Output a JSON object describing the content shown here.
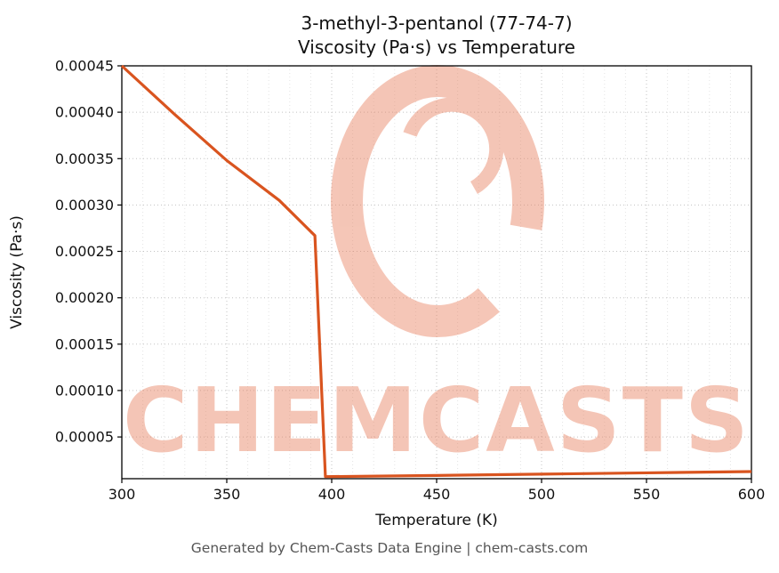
{
  "figure": {
    "background": "#ffffff"
  },
  "chart_data": {
    "type": "line",
    "title_line1": "3-methyl-3-pentanol (77-74-7)",
    "title_line2": "Viscosity (Pa·s) vs Temperature",
    "xlabel": "Temperature (K)",
    "ylabel": "Viscosity (Pa·s)",
    "xlim": [
      300,
      600
    ],
    "ylim": [
      5e-06,
      0.00045
    ],
    "xticks": [
      300,
      350,
      400,
      450,
      500,
      550,
      600
    ],
    "yticks": [
      {
        "value": 5e-05,
        "label": "0.00005"
      },
      {
        "value": 0.0001,
        "label": "0.00010"
      },
      {
        "value": 0.00015,
        "label": "0.00015"
      },
      {
        "value": 0.0002,
        "label": "0.00020"
      },
      {
        "value": 0.00025,
        "label": "0.00025"
      },
      {
        "value": 0.0003,
        "label": "0.00030"
      },
      {
        "value": 0.00035,
        "label": "0.00035"
      },
      {
        "value": 0.0004,
        "label": "0.00040"
      },
      {
        "value": 0.00045,
        "label": "0.00045"
      }
    ],
    "minor_x_step": 10,
    "grid": true,
    "legend": "none",
    "series": [
      {
        "name": "viscosity",
        "color": "#d9541f",
        "points": [
          [
            300,
            0.00045
          ],
          [
            325,
            0.000398
          ],
          [
            350,
            0.000348
          ],
          [
            375,
            0.000305
          ],
          [
            392,
            0.000267
          ],
          [
            397,
            7.2e-06
          ],
          [
            450,
            8.5e-06
          ],
          [
            500,
            9.9e-06
          ],
          [
            550,
            1.13e-05
          ],
          [
            600,
            1.27e-05
          ]
        ]
      }
    ]
  },
  "watermark": {
    "text": "CHEMCASTS",
    "color": "#e8815f",
    "opacity": 0.45
  },
  "footer": {
    "text": "Generated by Chem-Casts Data Engine | chem-casts.com"
  }
}
